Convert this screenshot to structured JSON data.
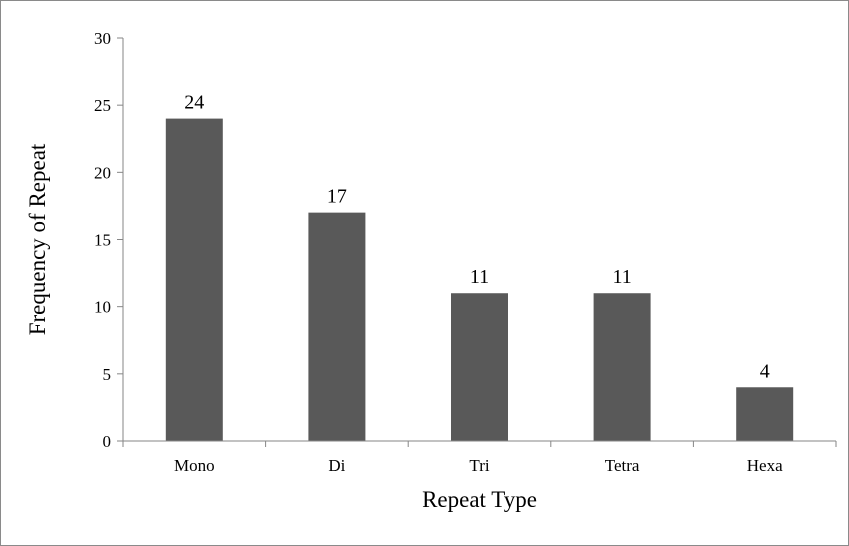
{
  "chart_data": {
    "type": "bar",
    "title": "",
    "xlabel": "Repeat Type",
    "ylabel": "Frequency of Repeat",
    "categories": [
      "Mono",
      "Di",
      "Tri",
      "Tetra",
      "Hexa"
    ],
    "values": [
      24,
      17,
      11,
      11,
      4
    ],
    "data_labels": [
      "24",
      "17",
      "11",
      "11",
      "4"
    ],
    "ylim": [
      0,
      30
    ],
    "yticks": [
      "0",
      "5",
      "10",
      "15",
      "20",
      "25",
      "30"
    ],
    "grid": false,
    "legend": "none",
    "bar_color": "#595959",
    "axis_color": "#868686"
  }
}
